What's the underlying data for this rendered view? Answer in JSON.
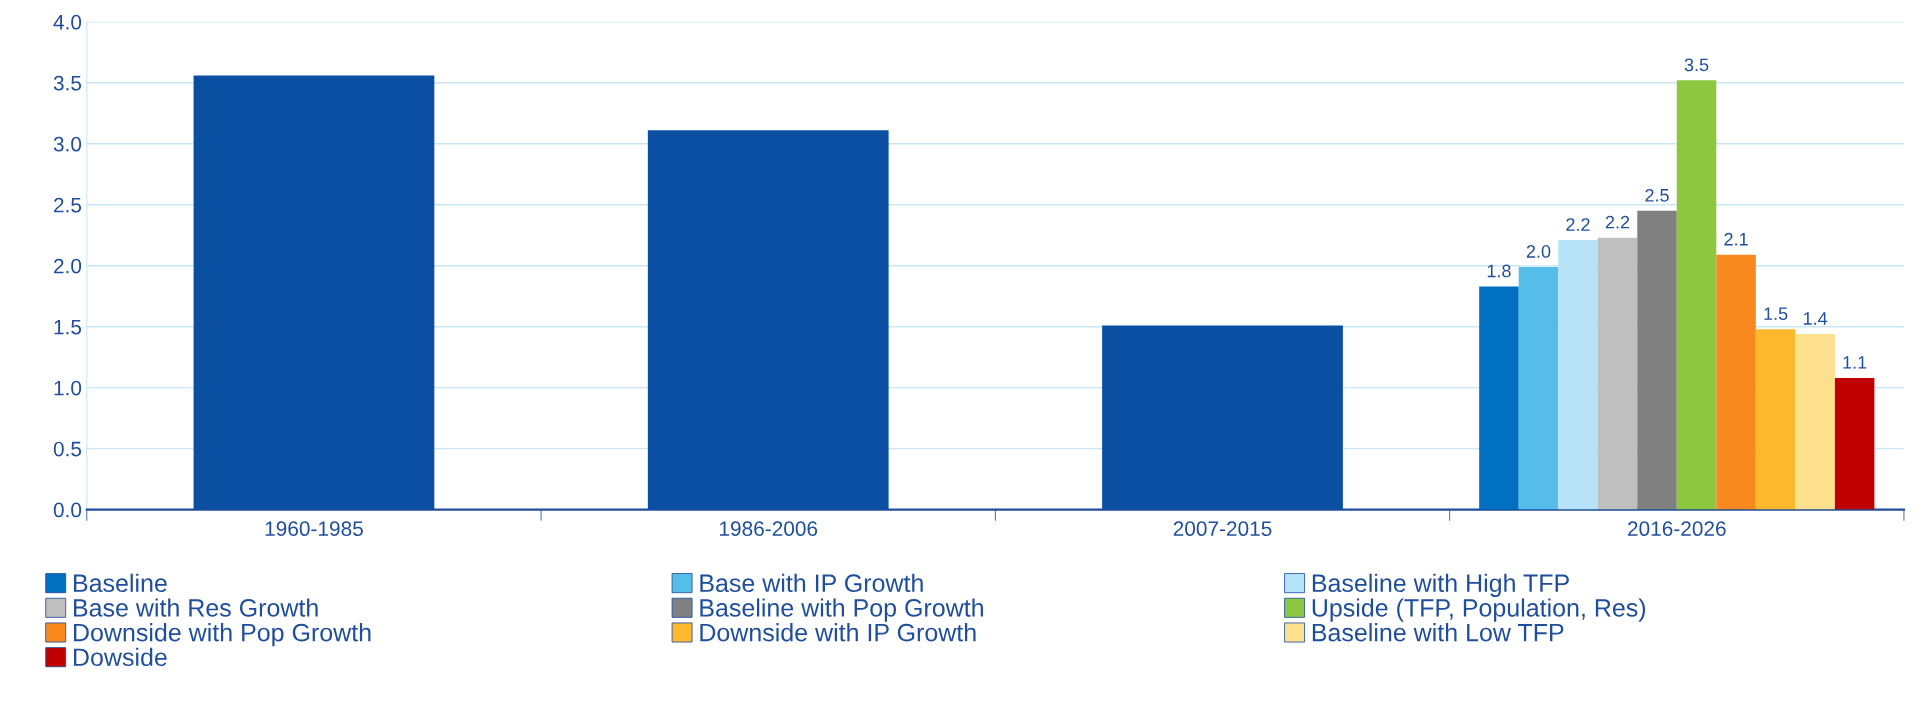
{
  "chart_data": {
    "type": "bar",
    "categories": [
      "1960-1985",
      "1986-2006",
      "2007-2015",
      "2016-2026"
    ],
    "ylim": [
      0,
      4.0
    ],
    "yticks": [
      {
        "value": 0,
        "label": "0.0"
      },
      {
        "value": 0.5,
        "label": "0.5"
      },
      {
        "value": 1,
        "label": "1.0"
      },
      {
        "value": 1.5,
        "label": "1.5"
      },
      {
        "value": 2,
        "label": "2.0"
      },
      {
        "value": 2.5,
        "label": "2.5"
      },
      {
        "value": 3,
        "label": "3.0"
      },
      {
        "value": 3.5,
        "label": "3.5"
      },
      {
        "value": 4,
        "label": "4.0"
      }
    ],
    "grid": "y",
    "legend": "bottom",
    "series": [
      {
        "color": "#0b4fa3",
        "values": [
          3.56,
          3.11,
          1.51,
          null
        ]
      },
      {
        "name": "Baseline",
        "color": "#0070c0",
        "values": [
          null,
          null,
          null,
          1.83
        ],
        "value_labels": [
          null,
          null,
          null,
          "1.8"
        ]
      },
      {
        "name": "Base with IP Growth",
        "color": "#56bde9",
        "values": [
          null,
          null,
          null,
          1.99
        ],
        "value_labels": [
          null,
          null,
          null,
          "2.0"
        ]
      },
      {
        "name": "Baseline with High TFP",
        "color": "#b6e3f7",
        "values": [
          null,
          null,
          null,
          2.21
        ],
        "value_labels": [
          null,
          null,
          null,
          "2.2"
        ]
      },
      {
        "name": "Base with Res Growth",
        "color": "#bfbfbf",
        "values": [
          null,
          null,
          null,
          2.23
        ],
        "value_labels": [
          null,
          null,
          null,
          "2.2"
        ]
      },
      {
        "name": "Baseline with Pop Growth",
        "color": "#808080",
        "values": [
          null,
          null,
          null,
          2.45
        ],
        "value_labels": [
          null,
          null,
          null,
          "2.5"
        ]
      },
      {
        "name": "Upside (TFP, Population, Res)",
        "color": "#8dc63f",
        "values": [
          null,
          null,
          null,
          3.52
        ],
        "value_labels": [
          null,
          null,
          null,
          "3.5"
        ]
      },
      {
        "name": "Downside with Pop Growth",
        "color": "#f7891f",
        "values": [
          null,
          null,
          null,
          2.09
        ],
        "value_labels": [
          null,
          null,
          null,
          "2.1"
        ]
      },
      {
        "name": "Downside with IP Growth",
        "color": "#fdb92e",
        "values": [
          null,
          null,
          null,
          1.48
        ],
        "value_labels": [
          null,
          null,
          null,
          "1.5"
        ]
      },
      {
        "name": "Baseline with Low TFP",
        "color": "#fde08e",
        "values": [
          null,
          null,
          null,
          1.44
        ],
        "value_labels": [
          null,
          null,
          null,
          "1.4"
        ]
      },
      {
        "name": "Dowside",
        "color": "#c00000",
        "values": [
          null,
          null,
          null,
          1.08
        ],
        "value_labels": [
          null,
          null,
          null,
          "1.1"
        ]
      }
    ]
  }
}
